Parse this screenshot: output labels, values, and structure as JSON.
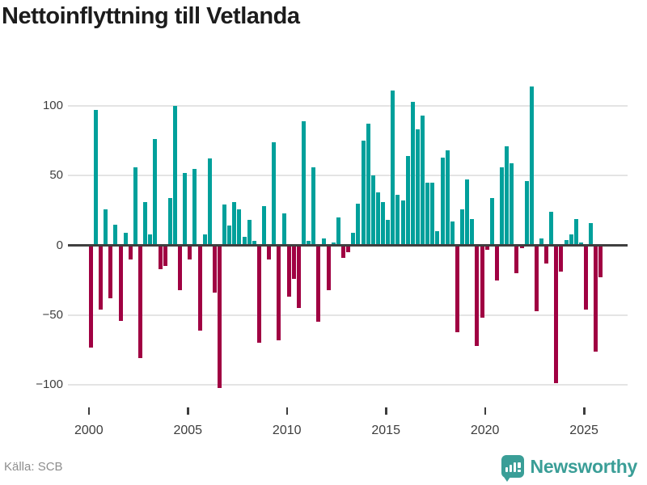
{
  "header": {
    "title": "Nettoinflyttning till Vetlanda"
  },
  "footer": {
    "source": "Källa: SCB",
    "brand": "Newsworthy"
  },
  "colors": {
    "positive_bar": "#00a09b",
    "negative_bar": "#a00042",
    "axis_line": "#3f3f3f",
    "gridline": "#e4e4e4",
    "brand_teal": "#3a9e97"
  },
  "chart_data": {
    "type": "bar",
    "title": "Nettoinflyttning till Vetlanda",
    "frequency": "quarterly",
    "x_start": "2000 Q1",
    "x_end": "2025 Q4",
    "grid": true,
    "legend": "none",
    "ylim": [
      -115,
      120
    ],
    "y_ticks": [
      100,
      50,
      0,
      -50,
      -100
    ],
    "y_tick_labels": [
      "100",
      "50",
      "0",
      "−50",
      "−100"
    ],
    "x_tick_years": [
      2000,
      2005,
      2010,
      2015,
      2020,
      2025
    ],
    "x_tick_labels": [
      "2000",
      "2005",
      "2010",
      "2015",
      "2020",
      "2025"
    ],
    "series": [
      {
        "name": "Nettoinflyttning",
        "values": [
          -73,
          97,
          -46,
          26,
          -38,
          15,
          -54,
          9,
          -10,
          56,
          -81,
          31,
          8,
          76,
          -17,
          -15,
          34,
          100,
          -32,
          52,
          -10,
          55,
          -61,
          8,
          62,
          -34,
          -102,
          29,
          14,
          31,
          26,
          6,
          18,
          3,
          -70,
          28,
          -10,
          74,
          -68,
          23,
          -37,
          -24,
          -45,
          89,
          3,
          56,
          -55,
          5,
          -32,
          2,
          20,
          -9,
          -5,
          9,
          30,
          75,
          87,
          50,
          38,
          31,
          18,
          111,
          36,
          32,
          64,
          103,
          83,
          93,
          45,
          45,
          10,
          63,
          68,
          17,
          -62,
          26,
          47,
          19,
          -72,
          -52,
          -3,
          34,
          -25,
          56,
          71,
          59,
          -20,
          -2,
          46,
          114,
          -47,
          5,
          -13,
          24,
          -99,
          -19,
          4,
          8,
          19,
          2,
          -46,
          16,
          -76,
          -23
        ]
      }
    ]
  }
}
